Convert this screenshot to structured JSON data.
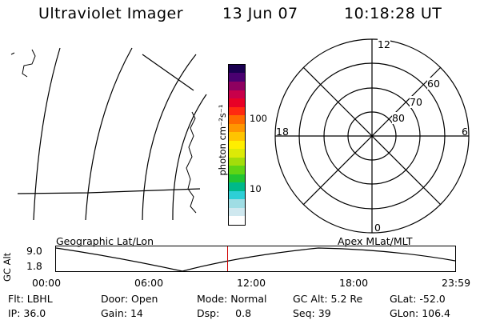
{
  "header": {
    "title": "Ultraviolet Imager",
    "date": "13 Jun 07",
    "time": "10:18:28 UT"
  },
  "colorbar": {
    "unit_label": "photon cm⁻²s⁻¹",
    "ticks": [
      "100",
      "10"
    ],
    "colors": [
      "#ffffff",
      "#cfe8ef",
      "#9fdde4",
      "#2ecfd6",
      "#00b98a",
      "#22c531",
      "#60d414",
      "#a3dd0a",
      "#dcea07",
      "#ffee00",
      "#ffc400",
      "#ff9600",
      "#ff6a00",
      "#ff2a10",
      "#e80026",
      "#c8004a",
      "#8e0060",
      "#4a0070",
      "#1a0050"
    ]
  },
  "geo_panel": {
    "label": "Geographic Lat/Lon"
  },
  "polar": {
    "label": "Apex MLat/MLT",
    "mlt_labels": [
      "12",
      "18",
      "6",
      "0"
    ],
    "lat_labels": [
      "60",
      "70",
      "80"
    ]
  },
  "altitude_plot": {
    "ylabel": "GC Alt",
    "ymax": "9.0",
    "ymin": "1.8",
    "xticks": [
      "00:00",
      "06:00",
      "12:00",
      "18:00",
      "23:59"
    ],
    "current_time_fraction": 0.429
  },
  "status": [
    {
      "key": "Flt:",
      "value": "LBHL"
    },
    {
      "key": "Door:",
      "value": "Open"
    },
    {
      "key": "Mode:",
      "value": "Normal"
    },
    {
      "key": "GC Alt:",
      "value": "5.2 Re"
    },
    {
      "key": "GLat:",
      "value": "-52.0"
    },
    {
      "key": "IP:",
      "value": "36.0"
    },
    {
      "key": "Gain:",
      "value": "14"
    },
    {
      "key": "Dsp:",
      "value": "0.8"
    },
    {
      "key": "Seq:",
      "value": "39"
    },
    {
      "key": "GLon:",
      "value": "106.4"
    }
  ]
}
